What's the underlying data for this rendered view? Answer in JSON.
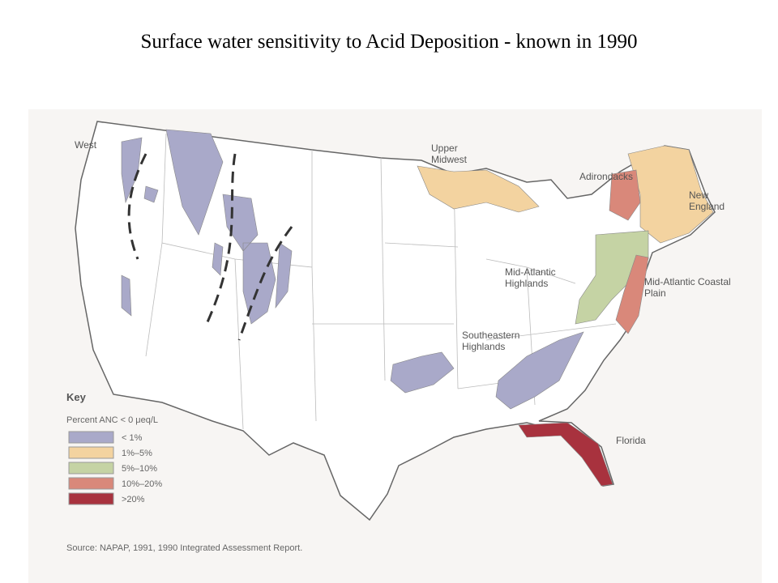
{
  "header": {
    "title": "Surface water sensitivity to Acid Deposition - known in 1990"
  },
  "regions": {
    "west": "West",
    "upper_midwest": "Upper Midwest",
    "adirondacks": "Adirondacks",
    "new_england": "New England",
    "mid_atlantic_highlands": "Mid-Atlantic Highlands",
    "mid_atlantic_coastal_plain": "Mid-Atlantic Coastal Plain",
    "southeastern_highlands": "Southeastern Highlands",
    "florida": "Florida"
  },
  "legend": {
    "title": "Key",
    "subtitle": "Percent ANC < 0 μeq/L",
    "items": [
      {
        "label": "< 1%",
        "color": "#a9a9c9"
      },
      {
        "label": "1%–5%",
        "color": "#f3d3a0"
      },
      {
        "label": "5%–10%",
        "color": "#c5d3a4"
      },
      {
        "label": "10%–20%",
        "color": "#d9887a"
      },
      {
        "label": ">20%",
        "color": "#a8323e"
      }
    ]
  },
  "source": "Source:  NAPAP, 1991, 1990 Integrated Assessment Report."
}
